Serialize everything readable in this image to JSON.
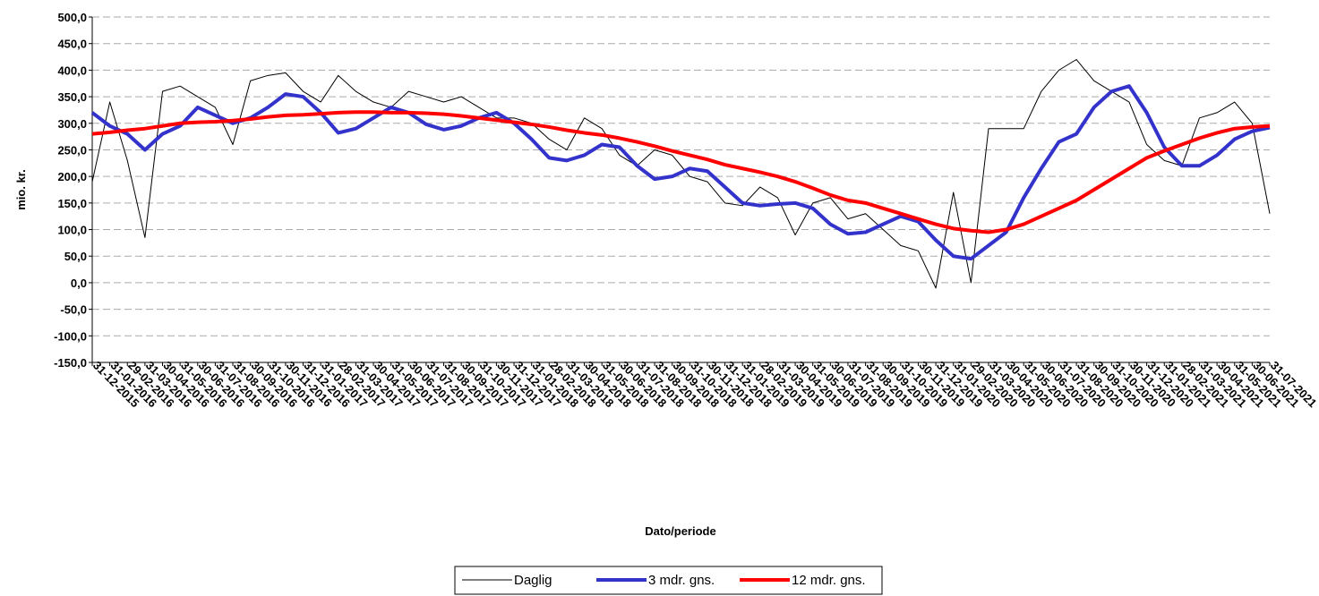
{
  "chart_data": {
    "type": "line",
    "y_label": "mio. kr.",
    "x_label": "Dato/periode",
    "categories": [
      "31-12-2015",
      "31-01-2016",
      "29-02-2016",
      "31-03-2016",
      "30-04-2016",
      "31-05-2016",
      "30-06-2016",
      "31-07-2016",
      "31-08-2016",
      "30-09-2016",
      "31-10-2016",
      "30-11-2016",
      "31-12-2016",
      "31-01-2017",
      "28-02-2017",
      "31-03-2017",
      "30-04-2017",
      "31-05-2017",
      "30-06-2017",
      "31-07-2017",
      "31-08-2017",
      "30-09-2017",
      "31-10-2017",
      "30-11-2017",
      "31-12-2017",
      "31-01-2018",
      "28-02-2018",
      "31-03-2018",
      "30-04-2018",
      "31-05-2018",
      "30-06-2018",
      "31-07-2018",
      "31-08-2018",
      "30-09-2018",
      "31-10-2018",
      "30-11-2018",
      "31-12-2018",
      "31-01-2019",
      "28-02-2019",
      "31-03-2019",
      "30-04-2019",
      "31-05-2019",
      "30-06-2019",
      "31-07-2019",
      "31-08-2019",
      "30-09-2019",
      "31-10-2019",
      "30-11-2019",
      "31-12-2019",
      "31-01-2020",
      "29-02-2020",
      "31-03-2020",
      "30-04-2020",
      "31-05-2020",
      "30-06-2020",
      "31-07-2020",
      "31-08-2020",
      "30-09-2020",
      "31-10-2020",
      "30-11-2020",
      "31-12-2020",
      "31-01-2021",
      "28-02-2021",
      "31-03-2021",
      "30-04-2021",
      "31-05-2021",
      "30-06-2021",
      "31-07-2021"
    ],
    "series": [
      {
        "name": "Daglig",
        "color": "#000000",
        "width": 1,
        "values": [
          190,
          340,
          230,
          85,
          360,
          370,
          350,
          330,
          260,
          380,
          390,
          395,
          360,
          340,
          390,
          360,
          340,
          330,
          360,
          350,
          340,
          350,
          330,
          310,
          310,
          300,
          270,
          250,
          310,
          290,
          240,
          220,
          250,
          240,
          200,
          190,
          150,
          145,
          180,
          160,
          90,
          150,
          160,
          120,
          130,
          100,
          70,
          60,
          -10,
          170,
          0,
          290,
          290,
          290,
          360,
          400,
          420,
          380,
          360,
          340,
          260,
          230,
          220,
          310,
          320,
          340,
          300,
          130
        ]
      },
      {
        "name": "3 mdr. gns.",
        "color": "#3333cc",
        "width": 4,
        "values": [
          320,
          295,
          280,
          250,
          280,
          295,
          330,
          315,
          300,
          310,
          330,
          355,
          350,
          320,
          282,
          290,
          310,
          330,
          320,
          298,
          288,
          295,
          310,
          320,
          300,
          270,
          235,
          230,
          240,
          260,
          255,
          220,
          195,
          200,
          215,
          210,
          180,
          150,
          145,
          148,
          150,
          140,
          110,
          92,
          95,
          110,
          125,
          115,
          80,
          50,
          45,
          70,
          95,
          160,
          215,
          265,
          280,
          330,
          360,
          370,
          320,
          255,
          220,
          220,
          240,
          270,
          285,
          292
        ]
      },
      {
        "name": "12 mdr. gns.",
        "color": "#ff0000",
        "width": 4,
        "values": [
          280,
          283,
          287,
          290,
          295,
          300,
          302,
          303,
          305,
          308,
          312,
          315,
          316,
          318,
          320,
          321,
          321,
          320,
          320,
          319,
          317,
          314,
          310,
          306,
          302,
          298,
          293,
          287,
          282,
          278,
          272,
          265,
          257,
          248,
          240,
          232,
          222,
          215,
          208,
          200,
          190,
          178,
          165,
          155,
          150,
          140,
          130,
          120,
          110,
          102,
          98,
          95,
          100,
          110,
          125,
          140,
          155,
          175,
          195,
          215,
          235,
          248,
          260,
          272,
          282,
          290,
          293,
          295
        ]
      }
    ],
    "ylim": [
      -150,
      500
    ],
    "yticks": [
      {
        "value": -150,
        "label": "-150,0"
      },
      {
        "value": -100,
        "label": "-100,0"
      },
      {
        "value": -50,
        "label": "-50,0"
      },
      {
        "value": 0,
        "label": "0,0"
      },
      {
        "value": 50,
        "label": "50,0"
      },
      {
        "value": 100,
        "label": "100,0"
      },
      {
        "value": 150,
        "label": "150,0"
      },
      {
        "value": 200,
        "label": "200,0"
      },
      {
        "value": 250,
        "label": "250,0"
      },
      {
        "value": 300,
        "label": "300,0"
      },
      {
        "value": 350,
        "label": "350,0"
      },
      {
        "value": 400,
        "label": "400,0"
      },
      {
        "value": 450,
        "label": "450,0"
      },
      {
        "value": 500,
        "label": "500,0"
      }
    ],
    "grid": true,
    "legend": "bottom"
  }
}
